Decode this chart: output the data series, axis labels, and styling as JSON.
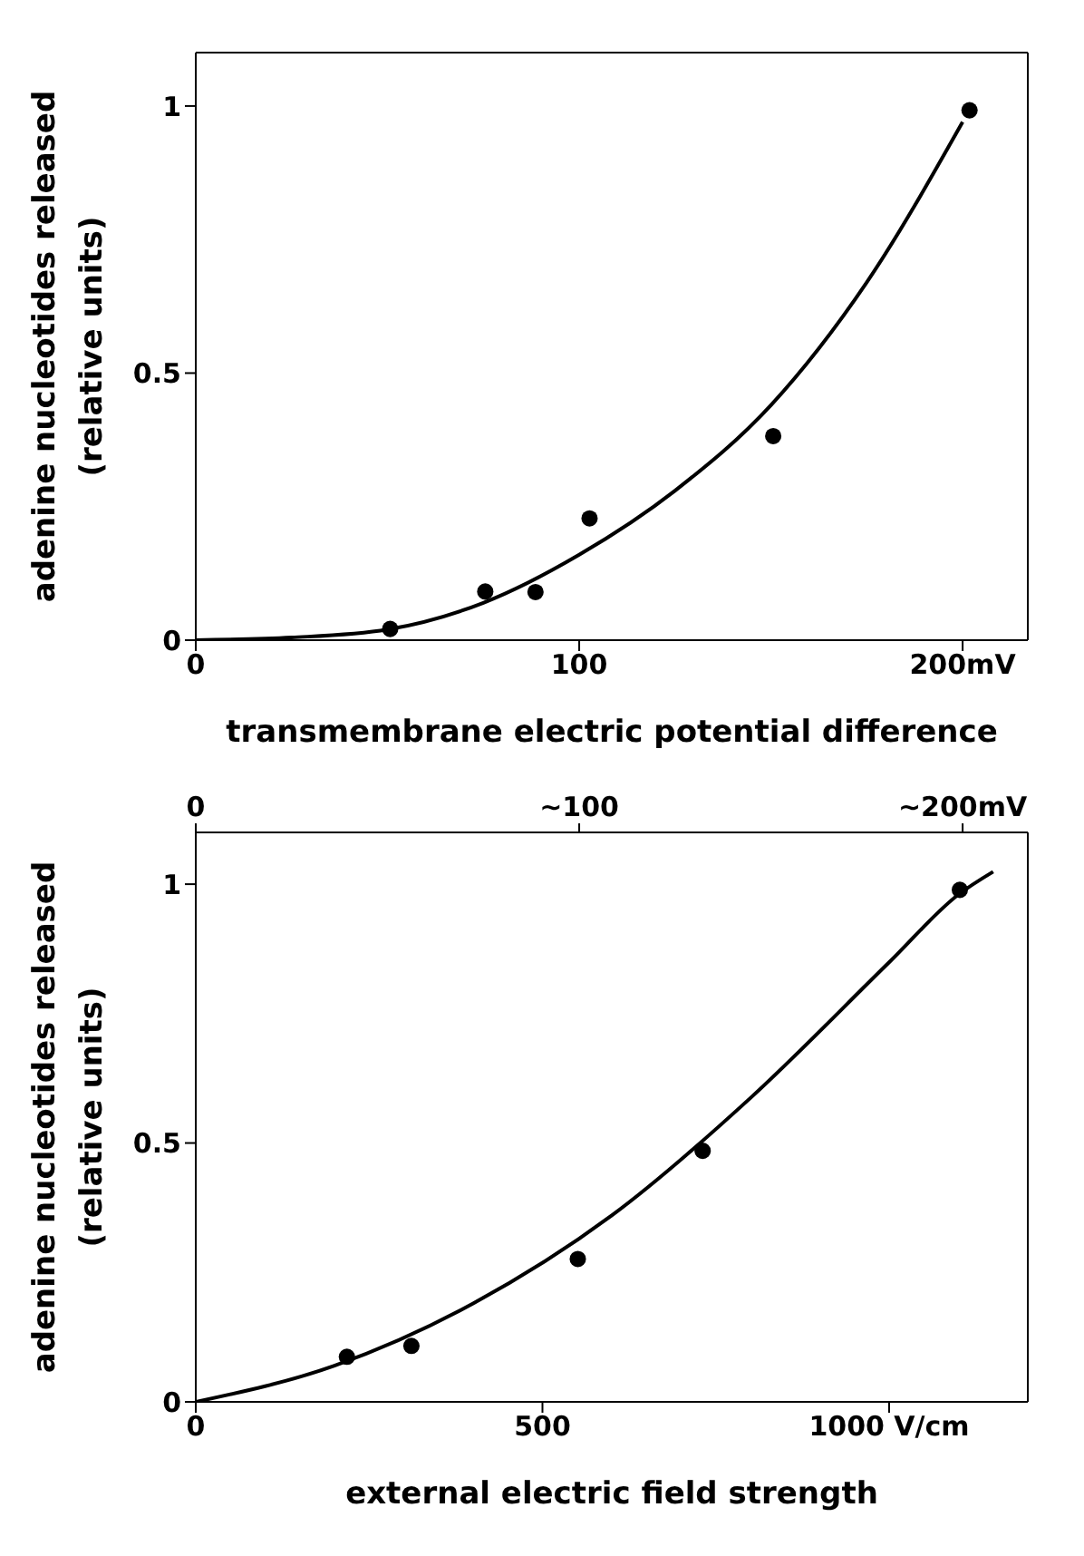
{
  "chart_data": [
    {
      "type": "scatter",
      "xlabel": "transmembrane electric potential difference",
      "ylabel": "adenine nucleotides released\n(relative units)",
      "xlim": [
        0,
        217
      ],
      "ylim": [
        0,
        1.1
      ],
      "xticks": [
        0,
        100,
        {
          "value": 200,
          "label": "200mV"
        }
      ],
      "yticks": [
        0,
        0.5,
        1
      ],
      "marker": "circle",
      "series": [
        {
          "color": "#000000",
          "x": [
            50.7,
            75.5,
            88.6,
            102.7,
            150.6,
            201.8
          ],
          "values": [
            0.021,
            0.091,
            0.09,
            0.228,
            0.382,
            0.992
          ]
        },
        {
          "type": "line",
          "color": "#000000",
          "marker": "none",
          "x": [
            0,
            25,
            50,
            75,
            100,
            125,
            150,
            175,
            200
          ],
          "values": [
            0,
            0.005,
            0.02,
            0.07,
            0.16,
            0.28,
            0.44,
            0.67,
            0.97
          ]
        }
      ]
    },
    {
      "type": "scatter",
      "xlabel": "external electric field strength",
      "ylabel": "adenine nucleotides released\n(relative units)",
      "xlim": [
        0,
        1200
      ],
      "ylim": [
        0,
        1.1
      ],
      "xticks": [
        0,
        500,
        {
          "value": 1000,
          "label": "1000 V/cm"
        }
      ],
      "yticks": [
        0,
        0.5,
        1
      ],
      "x2lim": [
        0,
        217
      ],
      "x2ticks": [
        0,
        {
          "value": 100,
          "label": "~100"
        },
        {
          "value": 200,
          "label": "~200mV"
        }
      ],
      "marker": "circle",
      "series": [
        {
          "color": "#000000",
          "x": [
            218,
            311,
            551,
            731,
            1102
          ],
          "values": [
            0.087,
            0.108,
            0.276,
            0.485,
            0.989
          ]
        },
        {
          "type": "line",
          "color": "#000000",
          "marker": "none",
          "x": [
            0,
            200,
            400,
            600,
            800,
            1000,
            1100,
            1150
          ],
          "values": [
            0,
            0.07,
            0.19,
            0.36,
            0.587,
            0.849,
            0.98,
            1.024
          ]
        }
      ]
    }
  ]
}
